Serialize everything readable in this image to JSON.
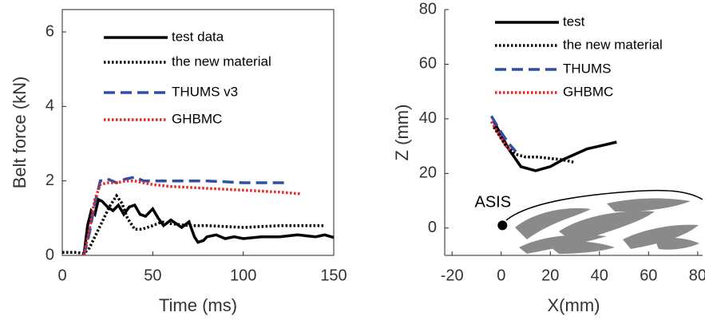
{
  "chart_data": [
    {
      "type": "line",
      "xlabel": "Time (ms)",
      "ylabel": "Belt force (kN)",
      "xlim": [
        0,
        150
      ],
      "ylim": [
        0,
        6.6
      ],
      "xticks": [
        0,
        50,
        100,
        150
      ],
      "yticks": [
        0,
        2,
        4,
        6
      ],
      "box": true,
      "series": [
        {
          "name": "test data",
          "color": "#000000",
          "linestyle": "solid",
          "x": [
            12,
            14,
            16,
            18,
            20,
            22,
            25,
            28,
            31,
            34,
            37,
            40,
            43,
            46,
            50,
            53,
            56,
            60,
            63,
            66,
            70,
            73,
            75,
            78,
            80,
            85,
            90,
            95,
            100,
            110,
            120,
            130,
            140,
            145,
            150
          ],
          "values": [
            0.02,
            0.8,
            1.2,
            1.1,
            1.5,
            1.45,
            1.3,
            1.2,
            1.35,
            1.1,
            1.3,
            1.35,
            1.1,
            1.05,
            1.25,
            1.0,
            0.8,
            0.95,
            0.85,
            0.75,
            0.9,
            0.5,
            0.35,
            0.4,
            0.5,
            0.55,
            0.45,
            0.5,
            0.45,
            0.5,
            0.5,
            0.55,
            0.5,
            0.55,
            0.48
          ]
        },
        {
          "name": "the new material",
          "color": "#000000",
          "linestyle": "dotted",
          "x": [
            0,
            8,
            12,
            15,
            18,
            22,
            26,
            30,
            33,
            36,
            40,
            44,
            50,
            55,
            60,
            70,
            80,
            100,
            120,
            145
          ],
          "values": [
            0.08,
            0.08,
            0.05,
            0.2,
            0.5,
            0.9,
            1.3,
            1.6,
            1.4,
            1.0,
            0.7,
            0.7,
            0.8,
            0.9,
            0.85,
            0.8,
            0.8,
            0.75,
            0.8,
            0.8
          ]
        },
        {
          "name": "THUMS v3",
          "color": "#2e4fa8",
          "linestyle": "dashed",
          "x": [
            12,
            15,
            18,
            21,
            25,
            30,
            35,
            40,
            45,
            50,
            60,
            80,
            100,
            125
          ],
          "values": [
            0,
            0.6,
            1.4,
            2.0,
            2.05,
            1.95,
            2.05,
            2.1,
            2.0,
            2.0,
            2.0,
            2.0,
            1.95,
            1.95
          ]
        },
        {
          "name": "GHBMC",
          "color": "#e8262a",
          "linestyle": "dotted",
          "x": [
            12,
            15,
            18,
            21,
            25,
            30,
            35,
            40,
            50,
            60,
            80,
            100,
            120,
            132
          ],
          "values": [
            0,
            0.7,
            1.5,
            1.9,
            1.95,
            1.95,
            2.0,
            2.0,
            1.9,
            1.85,
            1.8,
            1.75,
            1.7,
            1.65
          ]
        }
      ]
    },
    {
      "type": "line",
      "xlabel": "X(mm)",
      "ylabel": "Z (mm)",
      "xlim": [
        -23,
        82
      ],
      "ylim": [
        -10,
        80
      ],
      "xticks": [
        -20,
        0,
        20,
        40,
        60,
        80
      ],
      "yticks": [
        0,
        20,
        40,
        60,
        80
      ],
      "box": false,
      "annotations": [
        {
          "text": "ASIS",
          "x": 0.5,
          "y": 1
        }
      ],
      "series": [
        {
          "name": "test",
          "color": "#000000",
          "linestyle": "solid",
          "x": [
            -3,
            0,
            3,
            8,
            14,
            20,
            25,
            30,
            35,
            40,
            47
          ],
          "values": [
            39,
            34,
            29,
            22.5,
            21,
            22.5,
            25,
            27,
            29,
            30,
            31.5
          ]
        },
        {
          "name": "the new material",
          "color": "#000000",
          "linestyle": "dotted",
          "x": [
            -3,
            2,
            6,
            10,
            15,
            20,
            25,
            30
          ],
          "values": [
            37,
            30,
            27,
            26,
            26,
            25.5,
            25,
            24
          ]
        },
        {
          "name": "THUMS",
          "color": "#2e4fa8",
          "linestyle": "dashed",
          "x": [
            -4,
            0,
            3,
            6
          ],
          "values": [
            41,
            35,
            31,
            28
          ]
        },
        {
          "name": "GHBMC",
          "color": "#e8262a",
          "linestyle": "dotted",
          "x": [
            -4,
            0,
            2,
            4
          ],
          "values": [
            39,
            33,
            30,
            28
          ]
        }
      ]
    }
  ]
}
